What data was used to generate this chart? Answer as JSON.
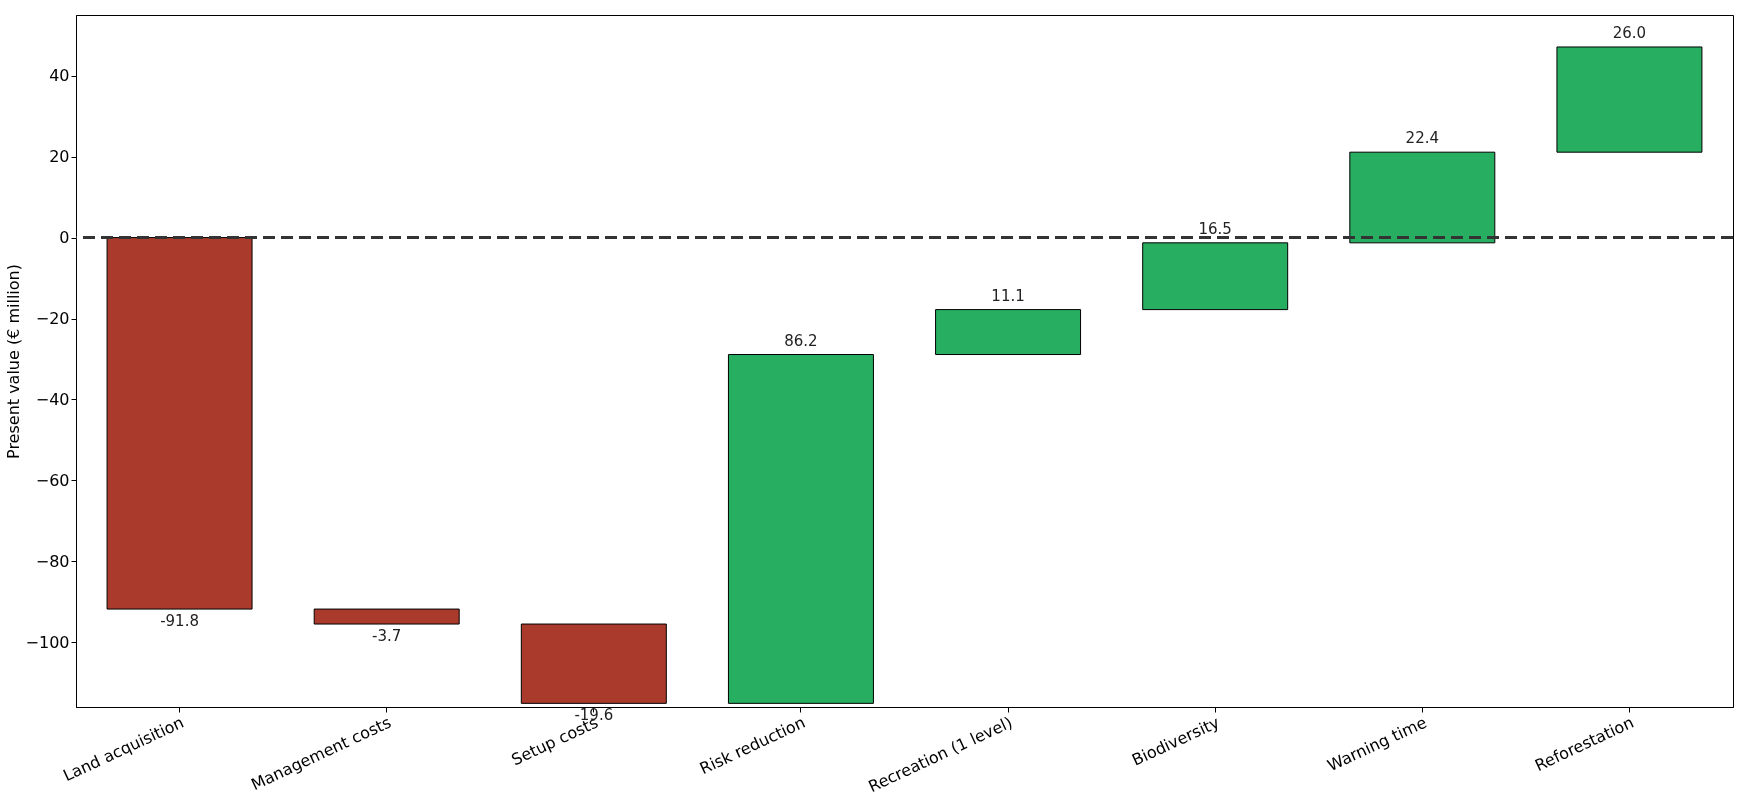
{
  "chart_data": {
    "type": "bar",
    "ylabel": "Present value (€ million)",
    "categories": [
      "Land acquisition",
      "Management costs",
      "Setup costs",
      "Risk reduction",
      "Recreation (1 level)",
      "Biodiversity",
      "Warning time",
      "Reforestation"
    ],
    "values": [
      -91.8,
      -3.7,
      -19.6,
      86.2,
      11.1,
      16.5,
      22.4,
      26.0
    ],
    "base": [
      0,
      -91.8,
      -95.5,
      -115.1,
      -28.9,
      -17.8,
      -1.3,
      21.1
    ],
    "colors": [
      "#a93a2c",
      "#a93a2c",
      "#a93a2c",
      "#27ae60",
      "#27ae60",
      "#27ae60",
      "#27ae60",
      "#27ae60"
    ],
    "ylim": [
      -116,
      55
    ],
    "yticks": [
      -100,
      -80,
      -60,
      -40,
      -20,
      0,
      20,
      40
    ],
    "ref_lines": [
      {
        "axis": "y",
        "value": 0,
        "color": "#333333",
        "line_style": "dashed"
      }
    ],
    "value_labels": [
      "-91.8",
      "-3.7",
      "-19.6",
      "86.2",
      "11.1",
      "16.5",
      "22.4",
      "26.0"
    ],
    "grid": false
  }
}
